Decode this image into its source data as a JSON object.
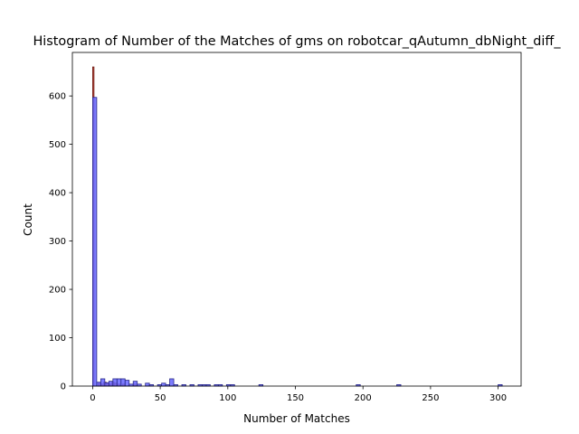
{
  "chart_data": {
    "type": "bar",
    "title": "Histogram of Number of the Matches of gms on robotcar_qAutumn_dbNight_diff_",
    "xlabel": "Number of Matches",
    "ylabel": "Count",
    "xlim": [
      -15,
      317
    ],
    "ylim": [
      0,
      690
    ],
    "xticks": [
      0,
      50,
      100,
      150,
      200,
      250,
      300
    ],
    "yticks": [
      0,
      100,
      200,
      300,
      400,
      500,
      600
    ],
    "grid": false,
    "colors": {
      "blue_fill": "#6666ff",
      "blue_edge": "#2a2a8a",
      "red_fill": "#c0392b",
      "red_edge": "#6b1a12",
      "axes": "#000000"
    },
    "series": [
      {
        "color": "red",
        "bins": [
          {
            "x": 0,
            "w": 1,
            "y": 660
          },
          {
            "x": 4,
            "w": 2,
            "y": 6
          },
          {
            "x": 6,
            "w": 2,
            "y": 4
          },
          {
            "x": 8,
            "w": 2,
            "y": 8
          },
          {
            "x": 10,
            "w": 2,
            "y": 6
          },
          {
            "x": 12,
            "w": 2,
            "y": 4
          },
          {
            "x": 14,
            "w": 2,
            "y": 8
          },
          {
            "x": 16,
            "w": 2,
            "y": 6
          },
          {
            "x": 18,
            "w": 2,
            "y": 4
          },
          {
            "x": 22,
            "w": 2,
            "y": 4
          },
          {
            "x": 30,
            "w": 2,
            "y": 4
          }
        ]
      },
      {
        "color": "blue",
        "bins": [
          {
            "x": 0,
            "w": 3,
            "y": 597
          },
          {
            "x": 3,
            "w": 3,
            "y": 8
          },
          {
            "x": 6,
            "w": 3,
            "y": 15
          },
          {
            "x": 9,
            "w": 3,
            "y": 7
          },
          {
            "x": 12,
            "w": 3,
            "y": 10
          },
          {
            "x": 15,
            "w": 3,
            "y": 15
          },
          {
            "x": 18,
            "w": 3,
            "y": 15
          },
          {
            "x": 21,
            "w": 3,
            "y": 15
          },
          {
            "x": 24,
            "w": 3,
            "y": 12
          },
          {
            "x": 27,
            "w": 3,
            "y": 4
          },
          {
            "x": 30,
            "w": 3,
            "y": 10
          },
          {
            "x": 33,
            "w": 3,
            "y": 4
          },
          {
            "x": 39,
            "w": 3,
            "y": 6
          },
          {
            "x": 42,
            "w": 3,
            "y": 3
          },
          {
            "x": 48,
            "w": 3,
            "y": 3
          },
          {
            "x": 51,
            "w": 3,
            "y": 6
          },
          {
            "x": 54,
            "w": 3,
            "y": 3
          },
          {
            "x": 57,
            "w": 3,
            "y": 15
          },
          {
            "x": 60,
            "w": 3,
            "y": 3
          },
          {
            "x": 66,
            "w": 3,
            "y": 3
          },
          {
            "x": 72,
            "w": 3,
            "y": 3
          },
          {
            "x": 78,
            "w": 3,
            "y": 3
          },
          {
            "x": 81,
            "w": 3,
            "y": 3
          },
          {
            "x": 84,
            "w": 3,
            "y": 3
          },
          {
            "x": 90,
            "w": 3,
            "y": 3
          },
          {
            "x": 93,
            "w": 3,
            "y": 3
          },
          {
            "x": 99,
            "w": 3,
            "y": 3
          },
          {
            "x": 102,
            "w": 3,
            "y": 3
          },
          {
            "x": 123,
            "w": 3,
            "y": 3
          },
          {
            "x": 195,
            "w": 3,
            "y": 3
          },
          {
            "x": 225,
            "w": 3,
            "y": 3
          },
          {
            "x": 300,
            "w": 3,
            "y": 3
          }
        ]
      }
    ]
  }
}
